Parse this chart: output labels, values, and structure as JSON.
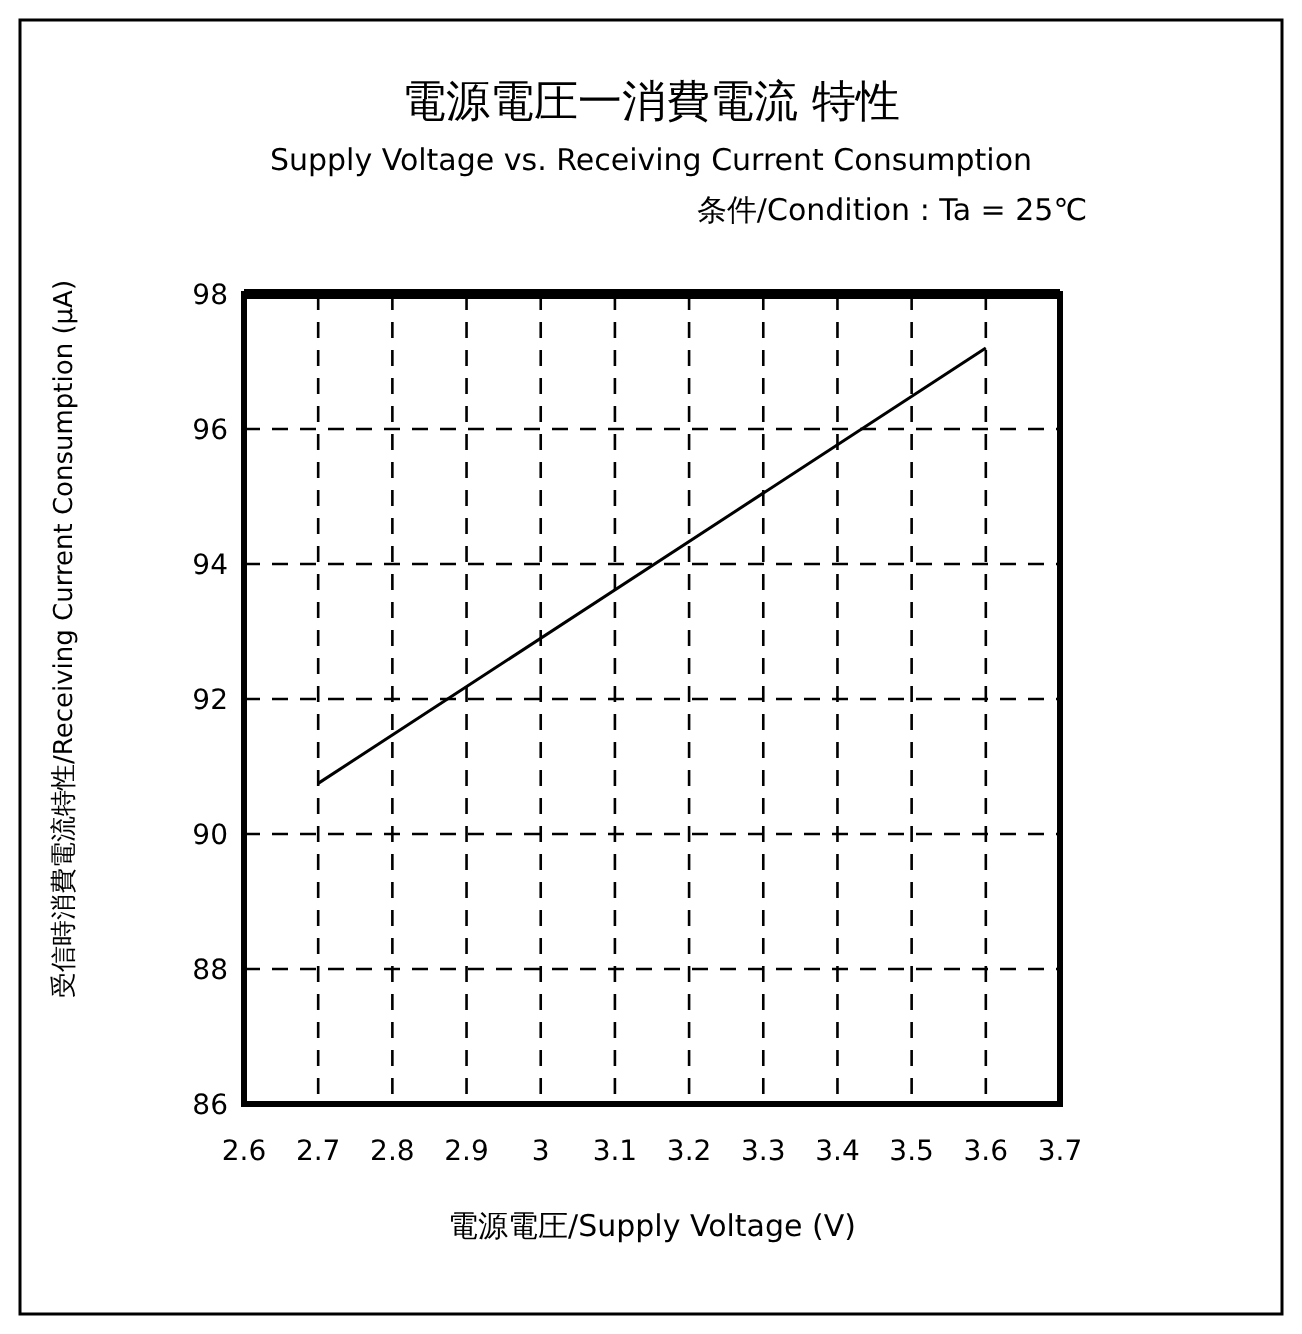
{
  "chart_data": {
    "type": "line",
    "title": "電源電圧一消費電流 特性",
    "subtitle": "Supply Voltage vs. Receiving Current Consumption",
    "annotations": [
      "条件/Condition : Ta = 25℃"
    ],
    "xlabel": "電源電圧/Supply Voltage (V)",
    "ylabel": "受信時消費電流特性/Receiving Current Consumption (μA)",
    "x": [
      2.7,
      3.6
    ],
    "series": [
      {
        "color": "#000000",
        "values": [
          90.75,
          97.2
        ]
      }
    ],
    "xlim": [
      2.6,
      3.7
    ],
    "xticks": [
      2.6,
      2.7,
      2.8,
      2.9,
      3,
      3.1,
      3.2,
      3.3,
      3.4,
      3.5,
      3.6,
      3.7
    ],
    "ylim": [
      86,
      98
    ],
    "yticks": [
      86,
      88,
      90,
      92,
      94,
      96,
      98
    ],
    "grid": true,
    "marker": "none",
    "line_style": "solid"
  }
}
